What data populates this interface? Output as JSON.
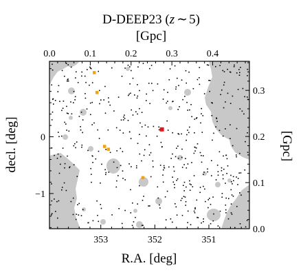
{
  "colors": {
    "mask": "#c8c8c8",
    "background_galaxy": "#000000",
    "orange_object": "#f2a20c",
    "red_object": "#e8141b"
  },
  "chart_data": {
    "type": "scatter",
    "title": "D-DEEP23 (",
    "title_math": "z",
    "title_sim": "∼",
    "title_num": "5",
    "title_close": ")",
    "xlabel": "R.A. [deg]",
    "ylabel": "decl. [deg]",
    "top_xlabel": "[Gpc]",
    "right_ylabel": "[Gpc]",
    "xlim": [
      353.95,
      350.25
    ],
    "ylim": [
      -1.62,
      1.33
    ],
    "x_inverted": true,
    "x_ticks": [
      353,
      352,
      351
    ],
    "x_tick_labels": [
      "353",
      "352",
      "351"
    ],
    "y_ticks": [
      -1,
      0
    ],
    "y_tick_labels": [
      "−1",
      "0"
    ],
    "top_ticks": [
      0.0,
      0.1,
      0.2,
      0.3,
      0.4
    ],
    "top_tick_labels": [
      "0.0",
      "0.1",
      "0.2",
      "0.3",
      "0.4"
    ],
    "top_range": [
      0.0,
      0.49
    ],
    "right_ticks": [
      0.0,
      0.1,
      0.2,
      0.3
    ],
    "right_tick_labels": [
      "0.0",
      "0.1",
      "0.2",
      "0.3"
    ],
    "right_range": [
      0.0,
      0.363
    ],
    "series": [
      {
        "color": "#f2a20c",
        "x": [
          353.12,
          353.07,
          352.93,
          352.86,
          352.22
        ],
        "y": [
          1.13,
          0.78,
          -0.17,
          -0.22,
          -0.72
        ]
      },
      {
        "color": "#e8141b",
        "x": [
          351.87
        ],
        "y": [
          0.13
        ]
      }
    ]
  }
}
